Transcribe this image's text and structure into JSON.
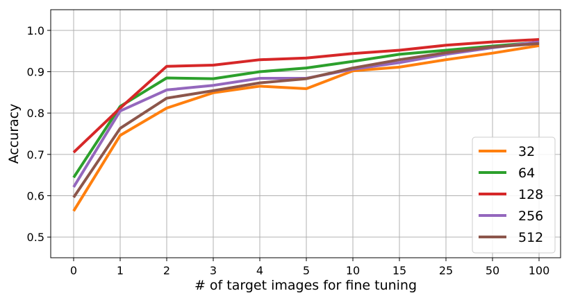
{
  "chart_data": {
    "type": "line",
    "categories": [
      "0",
      "1",
      "2",
      "3",
      "4",
      "5",
      "10",
      "15",
      "25",
      "50",
      "100"
    ],
    "xlabel": "# of target images for fine tuning",
    "ylabel": "Accuracy",
    "ylim": [
      0.45,
      1.05
    ],
    "yticks": [
      "0.5",
      "0.6",
      "0.7",
      "0.8",
      "0.9",
      "1.0"
    ],
    "grid": true,
    "legend_position": "bottom-right",
    "series": [
      {
        "name": "32",
        "color": "#ff7f0e",
        "values": [
          0.563,
          0.746,
          0.812,
          0.849,
          0.865,
          0.859,
          0.902,
          0.911,
          0.929,
          0.945,
          0.963
        ]
      },
      {
        "name": "64",
        "color": "#2ca02c",
        "values": [
          0.644,
          0.816,
          0.885,
          0.883,
          0.9,
          0.909,
          0.925,
          0.942,
          0.952,
          0.962,
          0.971
        ]
      },
      {
        "name": "128",
        "color": "#d62728",
        "values": [
          0.705,
          0.812,
          0.913,
          0.916,
          0.929,
          0.933,
          0.944,
          0.952,
          0.964,
          0.972,
          0.978
        ]
      },
      {
        "name": "256",
        "color": "#9467bd",
        "values": [
          0.621,
          0.805,
          0.856,
          0.867,
          0.884,
          0.884,
          0.906,
          0.922,
          0.942,
          0.958,
          0.972
        ]
      },
      {
        "name": "512",
        "color": "#8c564b",
        "values": [
          0.596,
          0.763,
          0.836,
          0.854,
          0.873,
          0.883,
          0.909,
          0.929,
          0.946,
          0.96,
          0.968
        ]
      }
    ]
  }
}
